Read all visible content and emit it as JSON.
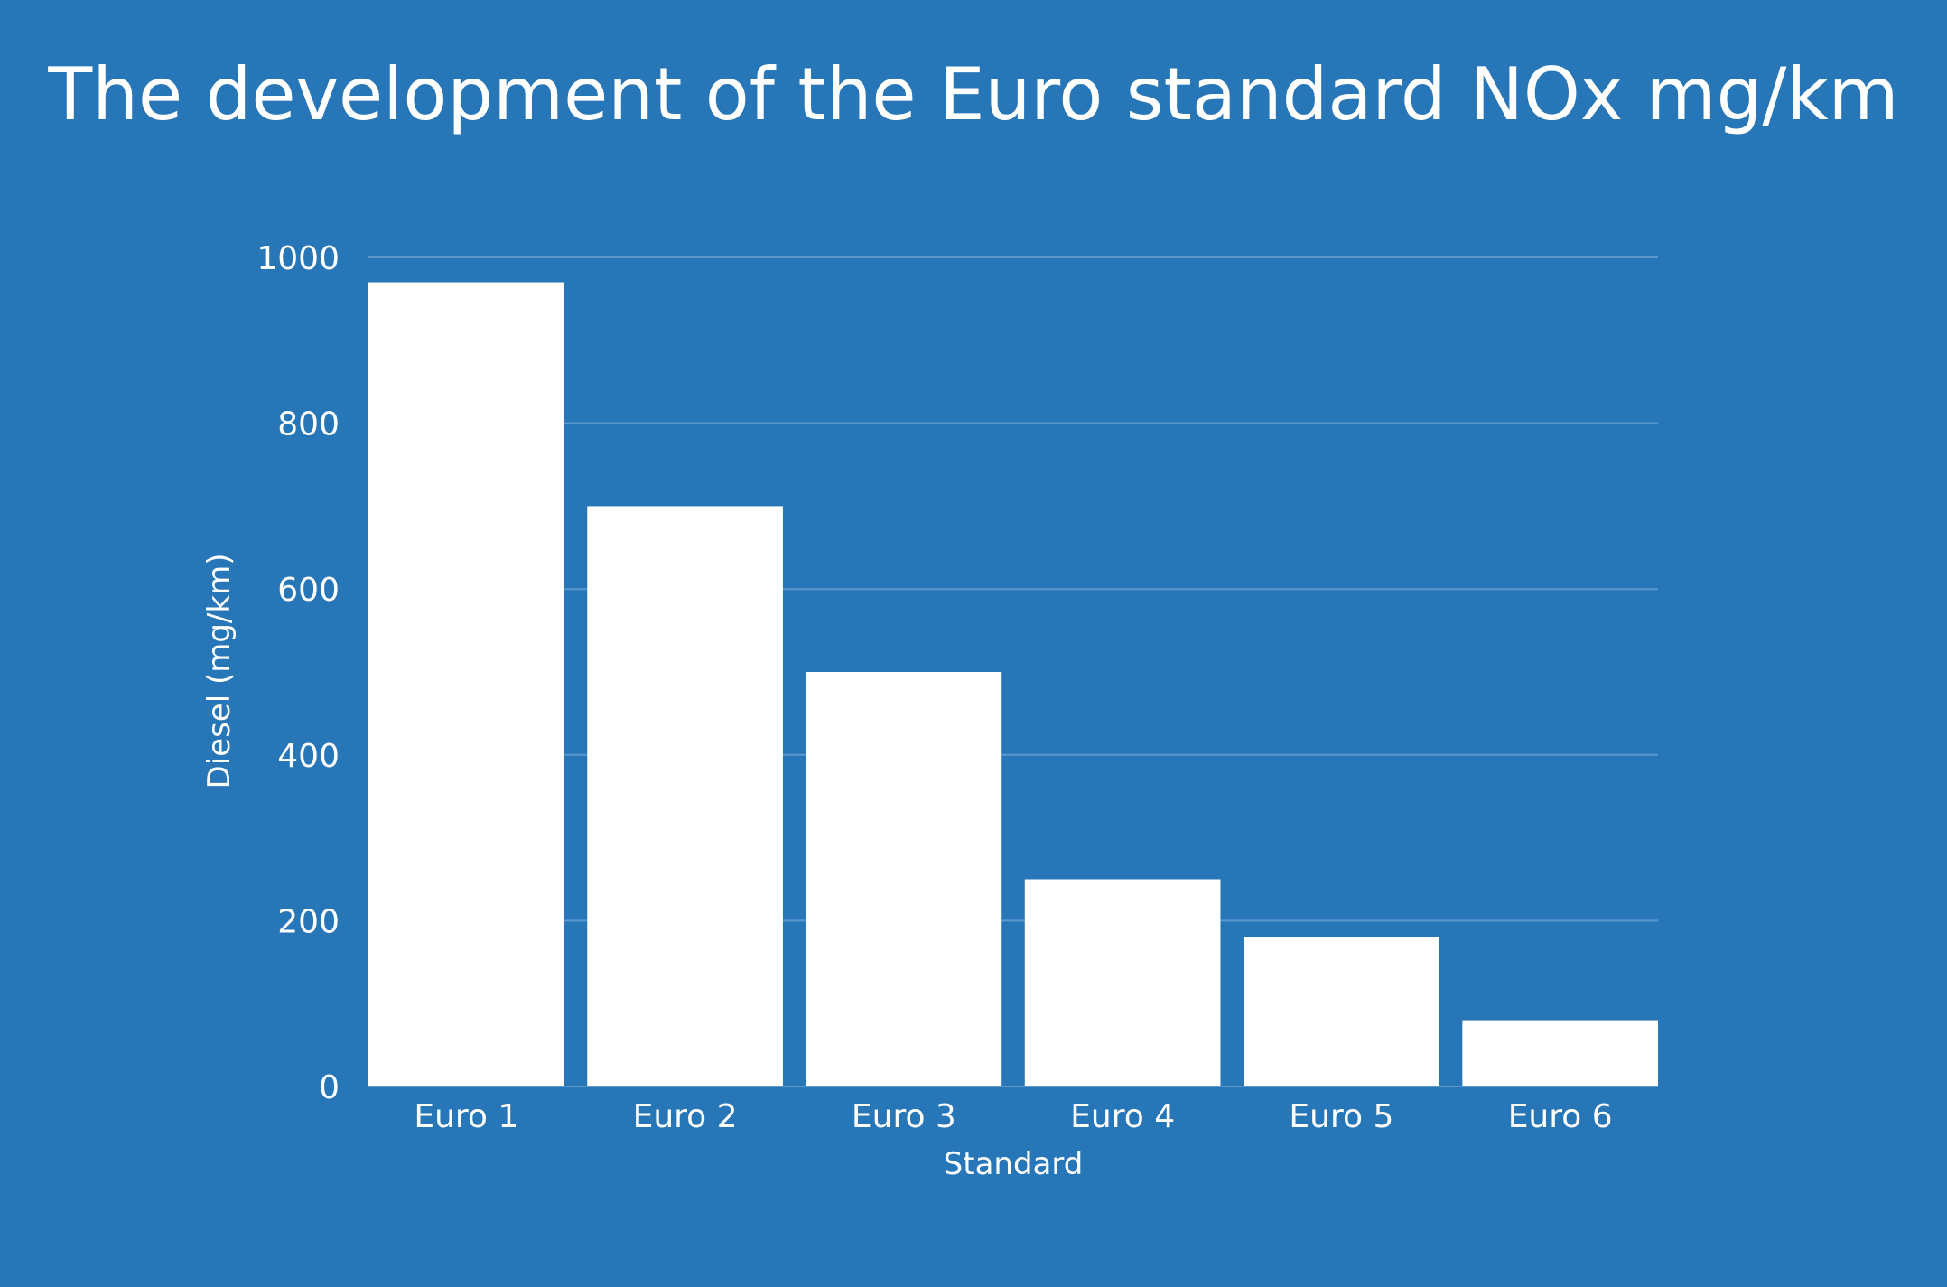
{
  "chart_data": {
    "type": "bar",
    "title": "The development of the Euro standard NOx mg/km",
    "xlabel": "Standard",
    "ylabel": "Diesel (mg/km)",
    "categories": [
      "Euro 1",
      "Euro 2",
      "Euro 3",
      "Euro 4",
      "Euro 5",
      "Euro 6"
    ],
    "values": [
      970,
      700,
      500,
      250,
      180,
      80
    ],
    "ylim": [
      0,
      1000
    ],
    "yticks": [
      0,
      200,
      400,
      600,
      800,
      1000
    ],
    "grid": true,
    "legend": "none",
    "colors": {
      "background": "#2776b8",
      "bar": "#ffffff",
      "grid": "#5c98cc",
      "text": "#ffffff"
    }
  }
}
